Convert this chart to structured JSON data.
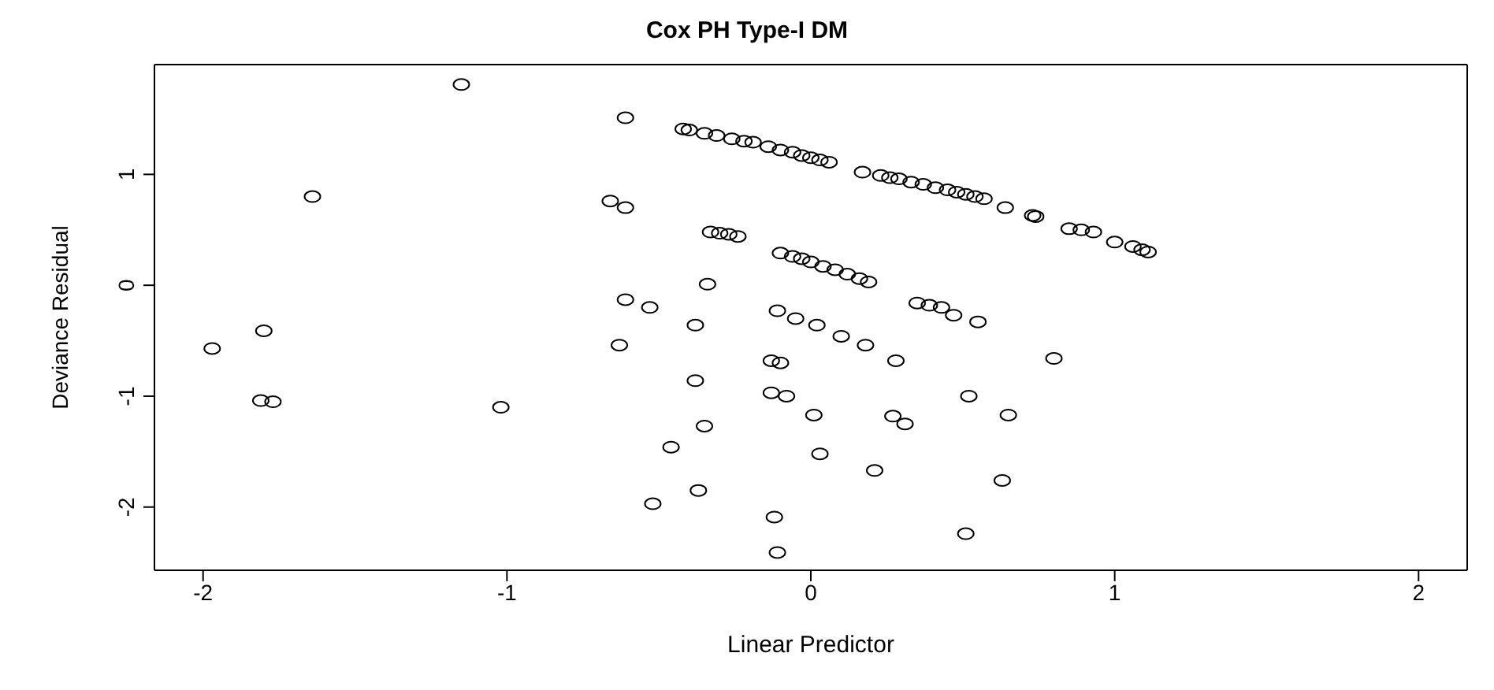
{
  "chart_data": {
    "type": "scatter",
    "title": "Cox PH Type-I DM",
    "xlabel": "Linear Predictor",
    "ylabel": "Deviance Residual",
    "xlim": [
      -2.16,
      2.16
    ],
    "ylim": [
      -2.57,
      1.99
    ],
    "xticks": [
      -2,
      -1,
      0,
      1,
      2
    ],
    "yticks": [
      -2,
      -1,
      0,
      1
    ],
    "grid": false,
    "marker": "circle",
    "series": [
      {
        "color": "#000000",
        "x": [
          -1.97,
          -1.8,
          -1.81,
          -1.77,
          -1.64,
          -1.15,
          -1.02,
          -0.61,
          -0.66,
          -0.61,
          -0.61,
          -0.63,
          -0.42,
          -0.4,
          -0.35,
          -0.31,
          -0.26,
          -0.22,
          -0.19,
          -0.14,
          -0.1,
          -0.06,
          -0.03,
          0.0,
          0.03,
          0.06,
          0.17,
          0.23,
          0.26,
          0.29,
          0.33,
          0.37,
          0.41,
          0.45,
          0.48,
          0.51,
          0.54,
          0.57,
          0.64,
          0.73,
          0.74,
          0.85,
          0.89,
          0.93,
          1.0,
          1.06,
          1.09,
          1.11,
          -0.33,
          -0.3,
          -0.27,
          -0.24,
          -0.1,
          -0.06,
          -0.03,
          0.0,
          0.04,
          0.08,
          0.12,
          0.16,
          0.19,
          -0.34,
          -0.53,
          -0.11,
          -0.05,
          0.02,
          0.1,
          0.18,
          0.35,
          0.39,
          0.43,
          0.47,
          0.55,
          -0.38,
          -0.13,
          -0.1,
          0.28,
          -0.38,
          -0.13,
          -0.08,
          0.52,
          0.01,
          0.27,
          0.31,
          -0.35,
          -0.46,
          0.03,
          0.21,
          -0.37,
          -0.52,
          -0.12,
          0.51,
          -0.11,
          0.8,
          0.65,
          0.63
        ],
        "values": [
          -0.57,
          -0.41,
          -1.04,
          -1.05,
          0.8,
          1.81,
          -1.1,
          1.51,
          0.76,
          0.7,
          -0.13,
          -0.54,
          1.41,
          1.4,
          1.37,
          1.35,
          1.32,
          1.3,
          1.29,
          1.25,
          1.22,
          1.2,
          1.17,
          1.15,
          1.13,
          1.11,
          1.02,
          0.99,
          0.97,
          0.96,
          0.93,
          0.91,
          0.88,
          0.86,
          0.84,
          0.82,
          0.8,
          0.78,
          0.7,
          0.63,
          0.62,
          0.51,
          0.5,
          0.48,
          0.39,
          0.35,
          0.32,
          0.3,
          0.48,
          0.47,
          0.46,
          0.44,
          0.29,
          0.26,
          0.24,
          0.21,
          0.17,
          0.14,
          0.1,
          0.06,
          0.03,
          0.01,
          -0.2,
          -0.23,
          -0.3,
          -0.36,
          -0.46,
          -0.54,
          -0.16,
          -0.18,
          -0.2,
          -0.27,
          -0.33,
          -0.36,
          -0.68,
          -0.7,
          -0.68,
          -0.86,
          -0.97,
          -1.0,
          -1.0,
          -1.17,
          -1.18,
          -1.25,
          -1.27,
          -1.46,
          -1.52,
          -1.67,
          -1.85,
          -1.97,
          -2.09,
          -2.24,
          -2.41,
          -0.66,
          -1.17,
          -1.76
        ]
      }
    ]
  }
}
